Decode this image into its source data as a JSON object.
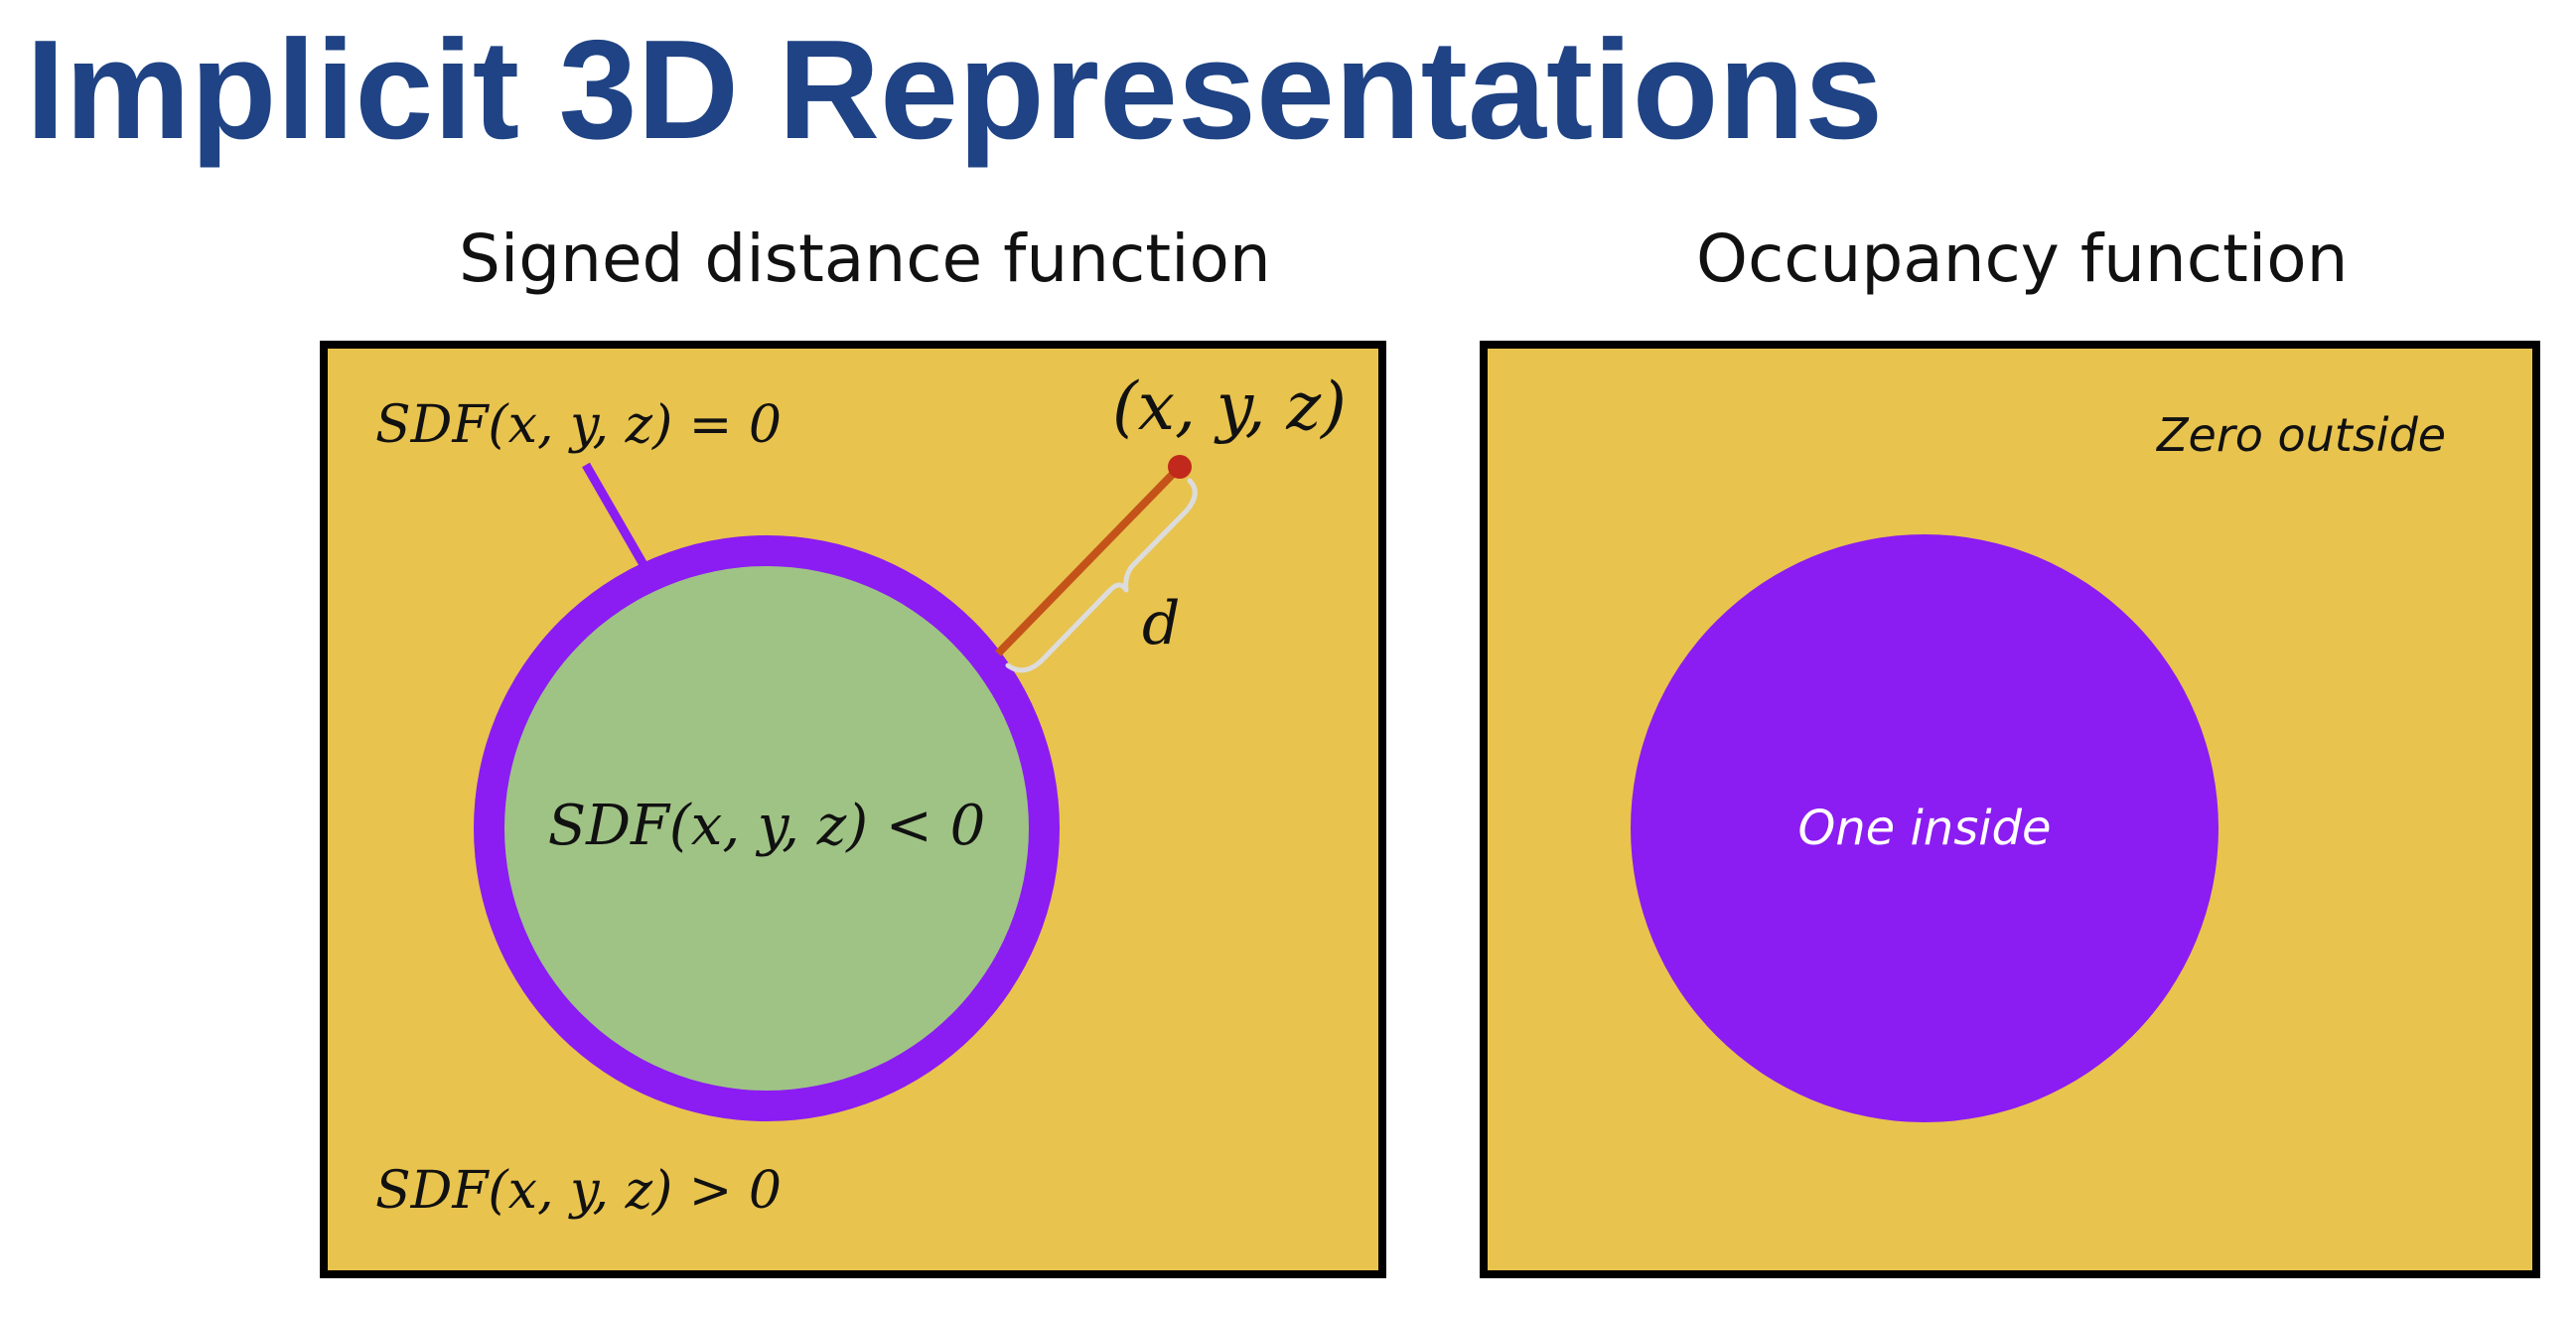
{
  "title": "Implicit 3D Representations",
  "panels": {
    "sdf": {
      "title": "Signed distance function",
      "surface_label": "SDF(x, y, z) = 0",
      "inside_label": "SDF(x, y, z) < 0",
      "outside_label": "SDF(x, y, z) > 0",
      "point_label": "(x, y, z)",
      "distance_label": "d"
    },
    "occupancy": {
      "title": "Occupancy function",
      "outside_label": "Zero outside",
      "inside_label": "One inside"
    }
  },
  "colors": {
    "title": "#1f4384",
    "background_region": "#e8c34e",
    "inside_region": "#9fc385",
    "surface": "#8b1cf2",
    "distance_line": "#c4531a",
    "point": "#c0291c",
    "brace": "#dcdcdc",
    "occupancy_inside": "#8b1cf2"
  }
}
